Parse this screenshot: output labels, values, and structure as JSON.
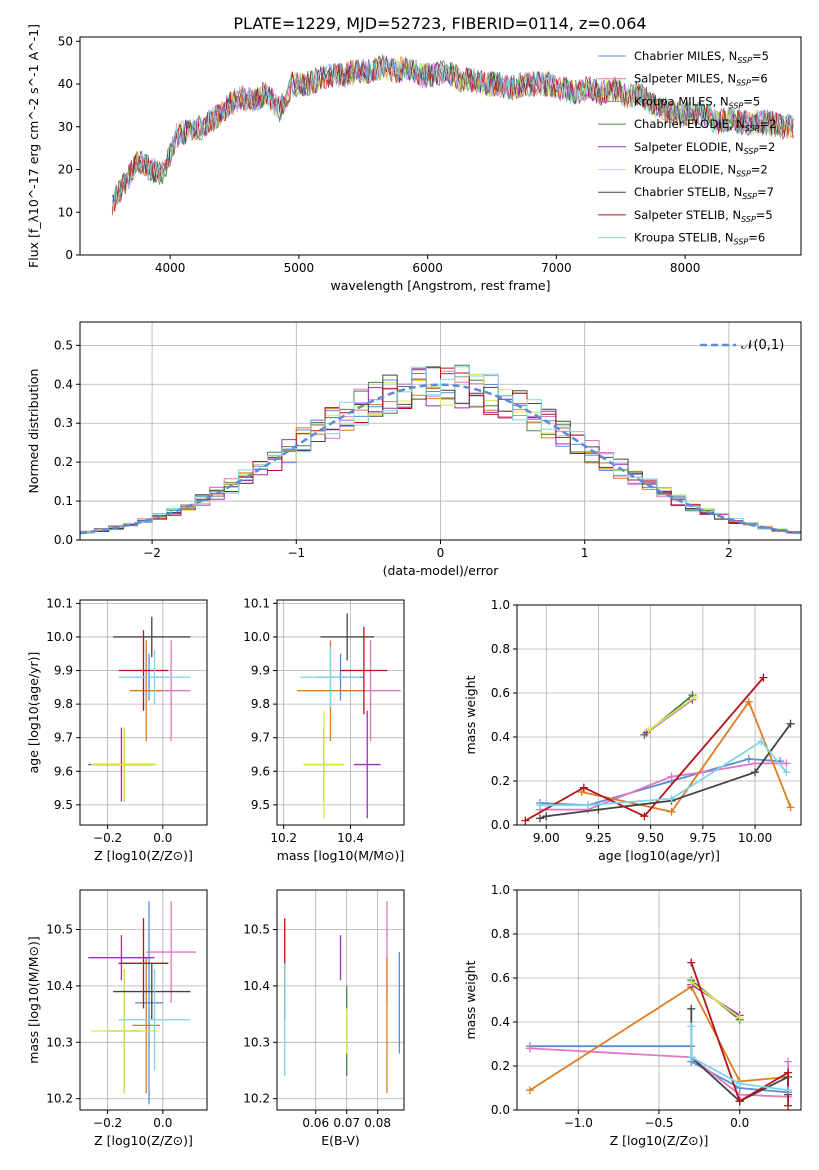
{
  "figure_title": "PLATE=1229, MJD=52723, FIBERID=0114, z=0.064",
  "series_styles": [
    {
      "name": "Chabrier MILES",
      "nssp": "5",
      "color": "#5b8cd7"
    },
    {
      "name": "Salpeter MILES",
      "nssp": "6",
      "color": "#e377c2"
    },
    {
      "name": "Kroupa MILES",
      "nssp": "5",
      "color": "#e07b22"
    },
    {
      "name": "Chabrier ELODIE",
      "nssp": "2",
      "color": "#4f7f4f"
    },
    {
      "name": "Salpeter ELODIE",
      "nssp": "2",
      "color": "#9b30c0"
    },
    {
      "name": "Kroupa ELODIE",
      "nssp": "2",
      "color": "#d8e84e"
    },
    {
      "name": "Chabrier STELIB",
      "nssp": "7",
      "color": "#444444"
    },
    {
      "name": "Salpeter STELIB",
      "nssp": "5",
      "color": "#b5121b"
    },
    {
      "name": "Kroupa STELIB",
      "nssp": "6",
      "color": "#7fd6e6"
    }
  ],
  "chart_data": [
    {
      "id": "spectrum",
      "type": "line",
      "title": "PLATE=1229, MJD=52723, FIBERID=0114, z=0.064",
      "xlabel": "wavelength [Angstrom, rest frame]",
      "ylabel": "Flux [f_λ10^-17 erg cm^-2 s^-1 A^-1]",
      "xlim": [
        3300,
        8900
      ],
      "ylim": [
        0,
        51
      ],
      "xticks": [
        4000,
        5000,
        6000,
        7000,
        8000
      ],
      "yticks": [
        0,
        10,
        20,
        30,
        40,
        50
      ],
      "x": [
        3550,
        3650,
        3750,
        3850,
        3950,
        4050,
        4150,
        4250,
        4350,
        4450,
        4550,
        4650,
        4750,
        4850,
        4950,
        5050,
        5150,
        5250,
        5350,
        5450,
        5550,
        5650,
        5750,
        5850,
        5950,
        6050,
        6150,
        6250,
        6350,
        6450,
        6550,
        6650,
        6750,
        6850,
        6950,
        7050,
        7150,
        7250,
        7350,
        7450,
        7550,
        7650,
        7750,
        7850,
        7950,
        8050,
        8150,
        8250,
        8350,
        8450,
        8550,
        8650,
        8750,
        8850
      ],
      "y": [
        12,
        17,
        22,
        20,
        19,
        28,
        29,
        30,
        32,
        35,
        37,
        36,
        38,
        34,
        40,
        40,
        41,
        42,
        42,
        43,
        43,
        44,
        43,
        44,
        42,
        42,
        43,
        41,
        41,
        40,
        40,
        39,
        40,
        40,
        40,
        39,
        38,
        39,
        38,
        39,
        37,
        38,
        35,
        34,
        33,
        33,
        33,
        31,
        32,
        31,
        31,
        31,
        30,
        30
      ],
      "legend_location": "upper right"
    },
    {
      "id": "residual-histogram",
      "type": "line",
      "xlabel": "(data-model)/error",
      "ylabel": "Normed distribution",
      "xlim": [
        -2.5,
        2.5
      ],
      "ylim": [
        0,
        0.56
      ],
      "xticks": [
        -2,
        -1,
        0,
        1,
        2
      ],
      "xtick_labels": [
        "−2",
        "−1",
        "0",
        "1",
        "2"
      ],
      "yticks": [
        0,
        0.1,
        0.2,
        0.3,
        0.4,
        0.5
      ],
      "ytick_labels": [
        "0.0",
        "0.1",
        "0.2",
        "0.3",
        "0.4",
        "0.5"
      ],
      "bin_width": 0.1,
      "reference": {
        "label": "𝒩(0,1)",
        "color": "#5b8cd7"
      },
      "legend_location": "upper right"
    },
    {
      "id": "age-vs-Z",
      "type": "scatter",
      "xlabel": "Z [log10(Z/Z⊙)]",
      "ylabel": "age [log10(age/yr)]",
      "xlim": [
        -0.3,
        0.16
      ],
      "ylim": [
        9.44,
        10.11
      ],
      "xticks": [
        -0.2,
        0.0
      ],
      "xtick_labels": [
        "−0.2",
        "0.0"
      ],
      "yticks": [
        9.5,
        9.6,
        9.7,
        9.8,
        9.9,
        10.0,
        10.1
      ],
      "ytick_labels": [
        "9.5",
        "9.6",
        "9.7",
        "9.8",
        "9.9",
        "10.0",
        "10.1"
      ],
      "points": [
        {
          "series": 0,
          "x": -0.05,
          "y": 9.88,
          "xerr": 0.05,
          "yerr": 0.07
        },
        {
          "series": 1,
          "x": 0.03,
          "y": 9.84,
          "xerr": 0.07,
          "yerr": 0.15
        },
        {
          "series": 2,
          "x": -0.06,
          "y": 9.84,
          "xerr": 0.06,
          "yerr": 0.15
        },
        {
          "series": 3,
          "x": -0.14,
          "y": 9.62,
          "xerr": 0.1,
          "yerr": 0.11
        },
        {
          "series": 4,
          "x": -0.15,
          "y": 9.62,
          "xerr": 0.12,
          "yerr": 0.11
        },
        {
          "series": 5,
          "x": -0.14,
          "y": 9.62,
          "xerr": 0.12,
          "yerr": 0.11
        },
        {
          "series": 6,
          "x": -0.04,
          "y": 10.0,
          "xerr": 0.14,
          "yerr": 0.06
        },
        {
          "series": 7,
          "x": -0.07,
          "y": 9.9,
          "xerr": 0.09,
          "yerr": 0.12
        },
        {
          "series": 8,
          "x": -0.03,
          "y": 9.88,
          "xerr": 0.13,
          "yerr": 0.08
        }
      ]
    },
    {
      "id": "age-vs-mass",
      "type": "scatter",
      "xlabel": "mass [log10(M/M⊙)]",
      "ylabel": "",
      "xlim": [
        12.2,
        10.55
      ],
      "note": "",
      "xlim_data": [
        10.18,
        10.56
      ],
      "ylim": [
        9.44,
        10.11
      ],
      "xticks": [
        10.2,
        10.4
      ],
      "xtick_labels": [
        "10.2",
        "10.4"
      ],
      "yticks": [
        9.5,
        9.6,
        9.7,
        9.8,
        9.9,
        10.0,
        10.1
      ],
      "ytick_labels": [
        "9.5",
        "9.6",
        "9.7",
        "9.8",
        "9.9",
        "10.0",
        "10.1"
      ],
      "points": [
        {
          "series": 0,
          "x": 10.37,
          "y": 9.88,
          "xerr": 0.07,
          "yerr": 0.07
        },
        {
          "series": 1,
          "x": 10.46,
          "y": 9.84,
          "xerr": 0.09,
          "yerr": 0.15
        },
        {
          "series": 2,
          "x": 10.34,
          "y": 9.84,
          "xerr": 0.1,
          "yerr": 0.15
        },
        {
          "series": 3,
          "x": 10.32,
          "y": 9.62,
          "xerr": 0.06,
          "yerr": 0.11
        },
        {
          "series": 4,
          "x": 10.45,
          "y": 9.62,
          "xerr": 0.04,
          "yerr": 0.16
        },
        {
          "series": 5,
          "x": 10.32,
          "y": 9.62,
          "xerr": 0.06,
          "yerr": 0.16
        },
        {
          "series": 6,
          "x": 10.39,
          "y": 10.0,
          "xerr": 0.08,
          "yerr": 0.07
        },
        {
          "series": 7,
          "x": 10.44,
          "y": 9.9,
          "xerr": 0.07,
          "yerr": 0.13
        },
        {
          "series": 8,
          "x": 10.34,
          "y": 9.88,
          "xerr": 0.09,
          "yerr": 0.09
        }
      ]
    },
    {
      "id": "mass-weight-vs-age",
      "type": "line",
      "xlabel": "age [log10(age/yr)]",
      "ylabel": "mass weight",
      "xlim": [
        8.86,
        10.22
      ],
      "ylim": [
        0,
        1
      ],
      "xticks": [
        9.0,
        9.25,
        9.5,
        9.75,
        10.0
      ],
      "xtick_labels": [
        "9.00",
        "9.25",
        "9.50",
        "9.75",
        "10.00"
      ],
      "yticks": [
        0,
        0.2,
        0.4,
        0.6,
        0.8,
        1.0
      ],
      "ytick_labels": [
        "0.0",
        "0.2",
        "0.4",
        "0.6",
        "0.8",
        "1.0"
      ],
      "series": [
        {
          "series": 0,
          "x": [
            8.97,
            9.2,
            9.6,
            9.97,
            10.12
          ],
          "y": [
            0.1,
            0.09,
            0.2,
            0.3,
            0.29
          ]
        },
        {
          "series": 1,
          "x": [
            8.97,
            9.2,
            9.6,
            9.75,
            10.0,
            10.15
          ],
          "y": [
            0.07,
            0.07,
            0.22,
            0.24,
            0.28,
            0.28
          ]
        },
        {
          "series": 2,
          "x": [
            9.17,
            9.6,
            9.97,
            10.17
          ],
          "y": [
            0.15,
            0.06,
            0.56,
            0.08
          ]
        },
        {
          "series": 3,
          "x": [
            9.47,
            9.7
          ],
          "y": [
            0.41,
            0.59
          ]
        },
        {
          "series": 4,
          "x": [
            9.48,
            9.7
          ],
          "y": [
            0.42,
            0.57
          ]
        },
        {
          "series": 5,
          "x": [
            9.49,
            9.71
          ],
          "y": [
            0.43,
            0.58
          ]
        },
        {
          "series": 6,
          "x": [
            8.97,
            9.0,
            9.25,
            9.6,
            10.0,
            10.17
          ],
          "y": [
            0.03,
            0.04,
            0.07,
            0.11,
            0.24,
            0.46
          ]
        },
        {
          "series": 7,
          "x": [
            8.9,
            9.18,
            9.47,
            10.04
          ],
          "y": [
            0.02,
            0.17,
            0.04,
            0.67
          ]
        },
        {
          "series": 8,
          "x": [
            8.97,
            9.2,
            9.6,
            10.03,
            10.15
          ],
          "y": [
            0.09,
            0.09,
            0.12,
            0.38,
            0.24
          ]
        }
      ]
    },
    {
      "id": "mass-vs-Z",
      "type": "scatter",
      "xlabel": "Z [log10(Z/Z⊙)]",
      "ylabel": "mass [log10(M/M⊙)]",
      "xlim": [
        -0.3,
        0.16
      ],
      "ylim": [
        10.18,
        10.57
      ],
      "xticks": [
        -0.2,
        0.0
      ],
      "xtick_labels": [
        "−0.2",
        "0.0"
      ],
      "yticks": [
        10.2,
        10.3,
        10.4,
        10.5
      ],
      "ytick_labels": [
        "10.2",
        "10.3",
        "10.4",
        "10.5"
      ],
      "points": [
        {
          "series": 0,
          "x": -0.05,
          "y": 10.37,
          "xerr": 0.05,
          "yerr": 0.18
        },
        {
          "series": 1,
          "x": 0.03,
          "y": 10.46,
          "xerr": 0.09,
          "yerr": 0.09
        },
        {
          "series": 2,
          "x": -0.06,
          "y": 10.33,
          "xerr": 0.05,
          "yerr": 0.12
        },
        {
          "series": 3,
          "x": -0.14,
          "y": 10.32,
          "xerr": 0.06,
          "yerr": 0.11
        },
        {
          "series": 4,
          "x": -0.15,
          "y": 10.45,
          "xerr": 0.12,
          "yerr": 0.04
        },
        {
          "series": 5,
          "x": -0.14,
          "y": 10.32,
          "xerr": 0.12,
          "yerr": 0.11
        },
        {
          "series": 6,
          "x": -0.04,
          "y": 10.39,
          "xerr": 0.14,
          "yerr": 0.05
        },
        {
          "series": 7,
          "x": -0.07,
          "y": 10.44,
          "xerr": 0.09,
          "yerr": 0.08
        },
        {
          "series": 8,
          "x": -0.03,
          "y": 10.34,
          "xerr": 0.13,
          "yerr": 0.09
        }
      ]
    },
    {
      "id": "mass-vs-ebv",
      "type": "scatter",
      "xlabel": "E(B-V)",
      "ylabel": "",
      "xlim": [
        0.0475,
        0.0885
      ],
      "ylim": [
        10.18,
        10.57
      ],
      "xticks": [
        0.06,
        0.07,
        0.08
      ],
      "xtick_labels": [
        "0.06",
        "0.07",
        "0.08"
      ],
      "yticks": [
        10.2,
        10.3,
        10.4,
        10.5
      ],
      "ytick_labels": [
        "10.2",
        "10.3",
        "10.4",
        "10.5"
      ],
      "points": [
        {
          "series": 0,
          "x": 0.087,
          "y": 10.37,
          "xerr": 0,
          "yerr": 0.09
        },
        {
          "series": 1,
          "x": 0.083,
          "y": 10.46,
          "xerr": 0,
          "yerr": 0.09
        },
        {
          "series": 2,
          "x": 0.083,
          "y": 10.33,
          "xerr": 0,
          "yerr": 0.12
        },
        {
          "series": 3,
          "x": 0.07,
          "y": 10.32,
          "xerr": 0,
          "yerr": 0.08
        },
        {
          "series": 4,
          "x": 0.068,
          "y": 10.45,
          "xerr": 0,
          "yerr": 0.04
        },
        {
          "series": 5,
          "x": 0.07,
          "y": 10.32,
          "xerr": 0,
          "yerr": 0.04
        },
        {
          "series": 6,
          "x": 0.05,
          "y": 10.39,
          "xerr": 0,
          "yerr": 0.05
        },
        {
          "series": 7,
          "x": 0.05,
          "y": 10.44,
          "xerr": 0,
          "yerr": 0.08
        },
        {
          "series": 8,
          "x": 0.05,
          "y": 10.34,
          "xerr": 0,
          "yerr": 0.1
        }
      ]
    },
    {
      "id": "mass-weight-vs-Z",
      "type": "line",
      "xlabel": "Z [log10(Z/Z⊙)]",
      "ylabel": "mass weight",
      "xlim": [
        -1.38,
        0.38
      ],
      "ylim": [
        0,
        1
      ],
      "xticks": [
        -1.0,
        -0.5,
        0.0
      ],
      "xtick_labels": [
        "−1.0",
        "−0.5",
        "0.0"
      ],
      "yticks": [
        0,
        0.2,
        0.4,
        0.6,
        0.8,
        1.0
      ],
      "ytick_labels": [
        "0.0",
        "0.2",
        "0.4",
        "0.6",
        "0.8",
        "1.0"
      ],
      "series": [
        {
          "series": 0,
          "x": [
            -1.3,
            -0.3,
            -0.3,
            0.0,
            0.3
          ],
          "y": [
            0.29,
            0.29,
            0.22,
            0.1,
            0.08
          ]
        },
        {
          "series": 1,
          "x": [
            -1.3,
            -0.3,
            0.0,
            0.3,
            0.3
          ],
          "y": [
            0.28,
            0.24,
            0.07,
            0.06,
            0.22
          ]
        },
        {
          "series": 2,
          "x": [
            -1.3,
            -0.3,
            0.0,
            0.3
          ],
          "y": [
            0.09,
            0.56,
            0.13,
            0.15
          ]
        },
        {
          "series": 3,
          "x": [
            -0.3,
            0.0
          ],
          "y": [
            0.59,
            0.41
          ]
        },
        {
          "series": 4,
          "x": [
            -0.3,
            0.0
          ],
          "y": [
            0.57,
            0.43
          ]
        },
        {
          "series": 5,
          "x": [
            -0.3,
            0.0
          ],
          "y": [
            0.58,
            0.42
          ]
        },
        {
          "series": 6,
          "x": [
            -0.3,
            -0.3,
            0.0,
            0.3,
            0.3
          ],
          "y": [
            0.46,
            0.24,
            0.04,
            0.15,
            0.07
          ]
        },
        {
          "series": 7,
          "x": [
            -0.3,
            0.0,
            0.3,
            0.3
          ],
          "y": [
            0.67,
            0.04,
            0.17,
            0.02
          ]
        },
        {
          "series": 8,
          "x": [
            -0.3,
            -0.3,
            0.0,
            0.3
          ],
          "y": [
            0.38,
            0.24,
            0.12,
            0.09
          ]
        }
      ]
    }
  ]
}
